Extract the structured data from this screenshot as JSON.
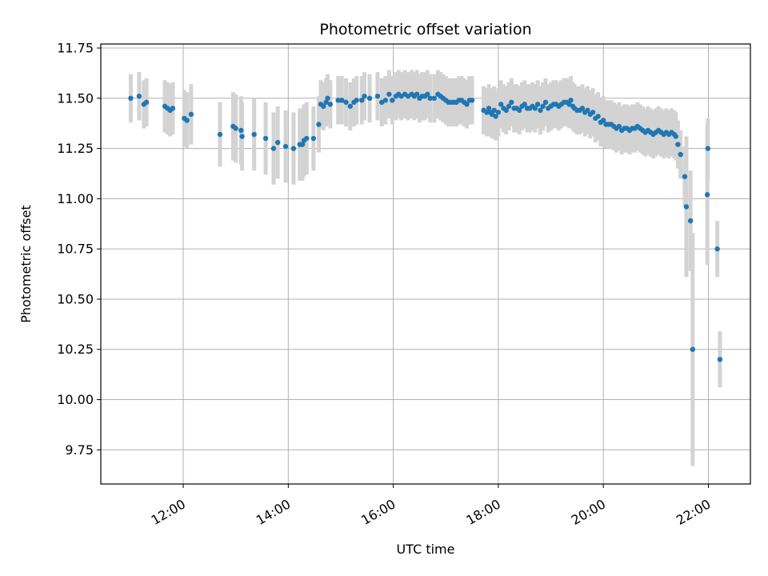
{
  "chart_data": {
    "type": "scatter",
    "title": "Photometric offset variation",
    "xlabel": "UTC time",
    "ylabel": "Photometric offset",
    "x_units": "hours UTC",
    "xlim": [
      10.43,
      22.8
    ],
    "ylim": [
      9.58,
      11.77
    ],
    "x_ticks": [
      {
        "value": 12,
        "label": "12:00"
      },
      {
        "value": 14,
        "label": "14:00"
      },
      {
        "value": 16,
        "label": "16:00"
      },
      {
        "value": 18,
        "label": "18:00"
      },
      {
        "value": 20,
        "label": "20:00"
      },
      {
        "value": 22,
        "label": "22:00"
      }
    ],
    "y_ticks": [
      {
        "value": 9.75,
        "label": "9.75"
      },
      {
        "value": 10.0,
        "label": "10.00"
      },
      {
        "value": 10.25,
        "label": "10.25"
      },
      {
        "value": 10.5,
        "label": "10.50"
      },
      {
        "value": 10.75,
        "label": "10.75"
      },
      {
        "value": 11.0,
        "label": "11.00"
      },
      {
        "value": 11.25,
        "label": "11.25"
      },
      {
        "value": 11.5,
        "label": "11.50"
      },
      {
        "value": 11.75,
        "label": "11.75"
      }
    ],
    "grid": true,
    "legend": "none",
    "colors": {
      "point": "#1f77b4",
      "errorbar": "#d3d3d3",
      "grid": "#b0b0b0"
    },
    "series": [
      {
        "points": [
          [
            11.0,
            11.5,
            0.12
          ],
          [
            11.16,
            11.51,
            0.12
          ],
          [
            11.25,
            11.47,
            0.12
          ],
          [
            11.3,
            11.48,
            0.12
          ],
          [
            11.65,
            11.46,
            0.13
          ],
          [
            11.7,
            11.45,
            0.13
          ],
          [
            11.75,
            11.44,
            0.13
          ],
          [
            11.8,
            11.45,
            0.13
          ],
          [
            12.02,
            11.4,
            0.14
          ],
          [
            12.07,
            11.39,
            0.14
          ],
          [
            12.15,
            11.42,
            0.15
          ],
          [
            12.7,
            11.32,
            0.16
          ],
          [
            12.95,
            11.36,
            0.17
          ],
          [
            13.0,
            11.35,
            0.17
          ],
          [
            13.1,
            11.34,
            0.17
          ],
          [
            13.12,
            11.31,
            0.17
          ],
          [
            13.35,
            11.32,
            0.18
          ],
          [
            13.57,
            11.3,
            0.18
          ],
          [
            13.72,
            11.25,
            0.18
          ],
          [
            13.8,
            11.28,
            0.18
          ],
          [
            13.95,
            11.26,
            0.18
          ],
          [
            14.1,
            11.25,
            0.18
          ],
          [
            14.22,
            11.27,
            0.18
          ],
          [
            14.27,
            11.27,
            0.18
          ],
          [
            14.3,
            11.29,
            0.18
          ],
          [
            14.35,
            11.3,
            0.18
          ],
          [
            14.48,
            11.3,
            0.16
          ],
          [
            14.58,
            11.37,
            0.14
          ],
          [
            14.62,
            11.47,
            0.12
          ],
          [
            14.67,
            11.46,
            0.12
          ],
          [
            14.72,
            11.48,
            0.12
          ],
          [
            14.75,
            11.5,
            0.12
          ],
          [
            14.8,
            11.47,
            0.12
          ],
          [
            14.95,
            11.49,
            0.12
          ],
          [
            15.02,
            11.49,
            0.12
          ],
          [
            15.1,
            11.48,
            0.12
          ],
          [
            15.18,
            11.46,
            0.12
          ],
          [
            15.25,
            11.48,
            0.12
          ],
          [
            15.3,
            11.49,
            0.12
          ],
          [
            15.4,
            11.49,
            0.12
          ],
          [
            15.45,
            11.51,
            0.12
          ],
          [
            15.55,
            11.5,
            0.12
          ],
          [
            15.7,
            11.51,
            0.12
          ],
          [
            15.78,
            11.48,
            0.12
          ],
          [
            15.85,
            11.49,
            0.12
          ],
          [
            15.92,
            11.52,
            0.12
          ],
          [
            15.98,
            11.49,
            0.12
          ],
          [
            16.05,
            11.51,
            0.12
          ],
          [
            16.1,
            11.52,
            0.12
          ],
          [
            16.15,
            11.51,
            0.12
          ],
          [
            16.22,
            11.52,
            0.12
          ],
          [
            16.28,
            11.51,
            0.12
          ],
          [
            16.35,
            11.52,
            0.12
          ],
          [
            16.4,
            11.51,
            0.12
          ],
          [
            16.45,
            11.52,
            0.12
          ],
          [
            16.5,
            11.5,
            0.12
          ],
          [
            16.55,
            11.51,
            0.12
          ],
          [
            16.6,
            11.51,
            0.12
          ],
          [
            16.65,
            11.52,
            0.12
          ],
          [
            16.7,
            11.5,
            0.12
          ],
          [
            16.78,
            11.5,
            0.12
          ],
          [
            16.85,
            11.52,
            0.12
          ],
          [
            16.9,
            11.51,
            0.12
          ],
          [
            16.95,
            11.5,
            0.12
          ],
          [
            17.0,
            11.49,
            0.12
          ],
          [
            17.05,
            11.48,
            0.12
          ],
          [
            17.1,
            11.48,
            0.12
          ],
          [
            17.15,
            11.48,
            0.12
          ],
          [
            17.2,
            11.48,
            0.12
          ],
          [
            17.25,
            11.49,
            0.12
          ],
          [
            17.3,
            11.49,
            0.12
          ],
          [
            17.35,
            11.48,
            0.12
          ],
          [
            17.4,
            11.47,
            0.12
          ],
          [
            17.45,
            11.49,
            0.12
          ],
          [
            17.5,
            11.49,
            0.12
          ],
          [
            17.72,
            11.44,
            0.12
          ],
          [
            17.78,
            11.43,
            0.12
          ],
          [
            17.82,
            11.45,
            0.12
          ],
          [
            17.85,
            11.43,
            0.12
          ],
          [
            17.88,
            11.42,
            0.12
          ],
          [
            17.92,
            11.44,
            0.12
          ],
          [
            17.95,
            11.41,
            0.12
          ],
          [
            18.0,
            11.43,
            0.12
          ],
          [
            18.05,
            11.47,
            0.12
          ],
          [
            18.1,
            11.45,
            0.12
          ],
          [
            18.15,
            11.44,
            0.12
          ],
          [
            18.2,
            11.46,
            0.12
          ],
          [
            18.25,
            11.48,
            0.12
          ],
          [
            18.3,
            11.45,
            0.12
          ],
          [
            18.35,
            11.45,
            0.12
          ],
          [
            18.4,
            11.44,
            0.12
          ],
          [
            18.45,
            11.46,
            0.12
          ],
          [
            18.5,
            11.47,
            0.12
          ],
          [
            18.55,
            11.45,
            0.12
          ],
          [
            18.6,
            11.45,
            0.12
          ],
          [
            18.65,
            11.46,
            0.12
          ],
          [
            18.7,
            11.45,
            0.12
          ],
          [
            18.75,
            11.47,
            0.12
          ],
          [
            18.8,
            11.44,
            0.12
          ],
          [
            18.85,
            11.46,
            0.12
          ],
          [
            18.9,
            11.48,
            0.12
          ],
          [
            18.95,
            11.45,
            0.12
          ],
          [
            19.0,
            11.46,
            0.12
          ],
          [
            19.05,
            11.47,
            0.12
          ],
          [
            19.1,
            11.47,
            0.12
          ],
          [
            19.15,
            11.46,
            0.12
          ],
          [
            19.2,
            11.47,
            0.12
          ],
          [
            19.25,
            11.48,
            0.12
          ],
          [
            19.3,
            11.48,
            0.12
          ],
          [
            19.35,
            11.47,
            0.12
          ],
          [
            19.38,
            11.49,
            0.12
          ],
          [
            19.42,
            11.46,
            0.12
          ],
          [
            19.45,
            11.45,
            0.12
          ],
          [
            19.5,
            11.44,
            0.12
          ],
          [
            19.55,
            11.44,
            0.12
          ],
          [
            19.6,
            11.45,
            0.12
          ],
          [
            19.65,
            11.43,
            0.12
          ],
          [
            19.7,
            11.44,
            0.12
          ],
          [
            19.75,
            11.42,
            0.12
          ],
          [
            19.8,
            11.43,
            0.12
          ],
          [
            19.85,
            11.4,
            0.12
          ],
          [
            19.9,
            11.41,
            0.12
          ],
          [
            19.95,
            11.38,
            0.12
          ],
          [
            20.0,
            11.39,
            0.12
          ],
          [
            20.05,
            11.37,
            0.12
          ],
          [
            20.1,
            11.37,
            0.12
          ],
          [
            20.15,
            11.37,
            0.12
          ],
          [
            20.2,
            11.36,
            0.12
          ],
          [
            20.25,
            11.35,
            0.12
          ],
          [
            20.3,
            11.36,
            0.12
          ],
          [
            20.35,
            11.34,
            0.12
          ],
          [
            20.4,
            11.35,
            0.12
          ],
          [
            20.45,
            11.35,
            0.12
          ],
          [
            20.5,
            11.34,
            0.12
          ],
          [
            20.55,
            11.35,
            0.12
          ],
          [
            20.6,
            11.35,
            0.12
          ],
          [
            20.65,
            11.36,
            0.12
          ],
          [
            20.7,
            11.35,
            0.12
          ],
          [
            20.75,
            11.34,
            0.12
          ],
          [
            20.8,
            11.33,
            0.12
          ],
          [
            20.85,
            11.34,
            0.12
          ],
          [
            20.9,
            11.33,
            0.12
          ],
          [
            20.95,
            11.32,
            0.12
          ],
          [
            21.0,
            11.33,
            0.12
          ],
          [
            21.05,
            11.34,
            0.12
          ],
          [
            21.1,
            11.33,
            0.12
          ],
          [
            21.15,
            11.32,
            0.12
          ],
          [
            21.2,
            11.33,
            0.12
          ],
          [
            21.25,
            11.32,
            0.12
          ],
          [
            21.3,
            11.33,
            0.12
          ],
          [
            21.35,
            11.32,
            0.12
          ],
          [
            21.38,
            11.31,
            0.12
          ],
          [
            21.42,
            11.27,
            0.12
          ],
          [
            21.47,
            11.22,
            0.12
          ],
          [
            21.55,
            11.11,
            0.15
          ],
          [
            21.58,
            10.96,
            0.35
          ],
          [
            21.66,
            10.89,
            0.25
          ],
          [
            21.7,
            10.25,
            0.58
          ],
          [
            21.99,
            11.25,
            0.15
          ],
          [
            21.98,
            11.02,
            0.35
          ],
          [
            22.17,
            10.75,
            0.14
          ],
          [
            22.22,
            10.2,
            0.14
          ]
        ]
      }
    ]
  }
}
